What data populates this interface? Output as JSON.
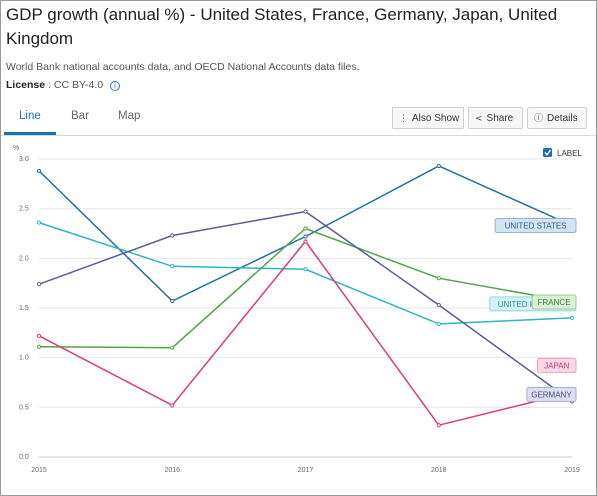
{
  "header": {
    "title": "GDP growth (annual %) - United States, France, Germany, Japan, United Kingdom",
    "source": "World Bank national accounts data, and OECD National Accounts data files.",
    "license_label": "License",
    "license_value": ": CC BY-4.0"
  },
  "tabs": [
    {
      "label": "Line",
      "active": true
    },
    {
      "label": "Bar",
      "active": false
    },
    {
      "label": "Map",
      "active": false
    }
  ],
  "toolbar": {
    "also_show": "Also Show",
    "share": "Share",
    "details": "Details"
  },
  "label_toggle": {
    "label": "LABEL",
    "checked": true
  },
  "chart_data": {
    "type": "line",
    "ylabel": "%",
    "x": [
      "2015",
      "2016",
      "2017",
      "2018",
      "2019"
    ],
    "ylim": [
      0,
      3.0
    ],
    "yticks": [
      "0.0",
      "0.5",
      "1.0",
      "1.5",
      "2.0",
      "2.5",
      "3.0"
    ],
    "grid": true,
    "series": [
      {
        "name": "UNITED STATES",
        "color": "#1d6fa0",
        "label_bg": "#d3e3f1",
        "label_border": "#8fb5d8",
        "label_color": "#2d5f8a",
        "values": [
          2.88,
          1.57,
          2.22,
          2.93,
          2.33
        ]
      },
      {
        "name": "UNITED KINGDOM",
        "color": "#2eb6c0",
        "label_bg": "#d4f1f3",
        "label_border": "#8fd6dc",
        "label_color": "#2a8f96",
        "values": [
          2.36,
          1.92,
          1.89,
          1.34,
          1.4
        ]
      },
      {
        "name": "FRANCE",
        "color": "#55a24f",
        "label_bg": "#dcefd6",
        "label_border": "#9bcd8f",
        "label_color": "#3f7d39",
        "values": [
          1.11,
          1.1,
          2.3,
          1.8,
          1.56
        ]
      },
      {
        "name": "JAPAN",
        "color": "#dc3a7e",
        "label_bg": "#fad8e6",
        "label_border": "#eda1c0",
        "label_color": "#c2356f",
        "values": [
          1.22,
          0.52,
          2.17,
          0.32,
          0.65
        ]
      },
      {
        "name": "GERMANY",
        "color": "#5a5f93",
        "label_bg": "#dddff0",
        "label_border": "#a8acd3",
        "label_color": "#4a4f80",
        "values": [
          1.74,
          2.23,
          2.47,
          1.53,
          0.56
        ]
      }
    ]
  }
}
